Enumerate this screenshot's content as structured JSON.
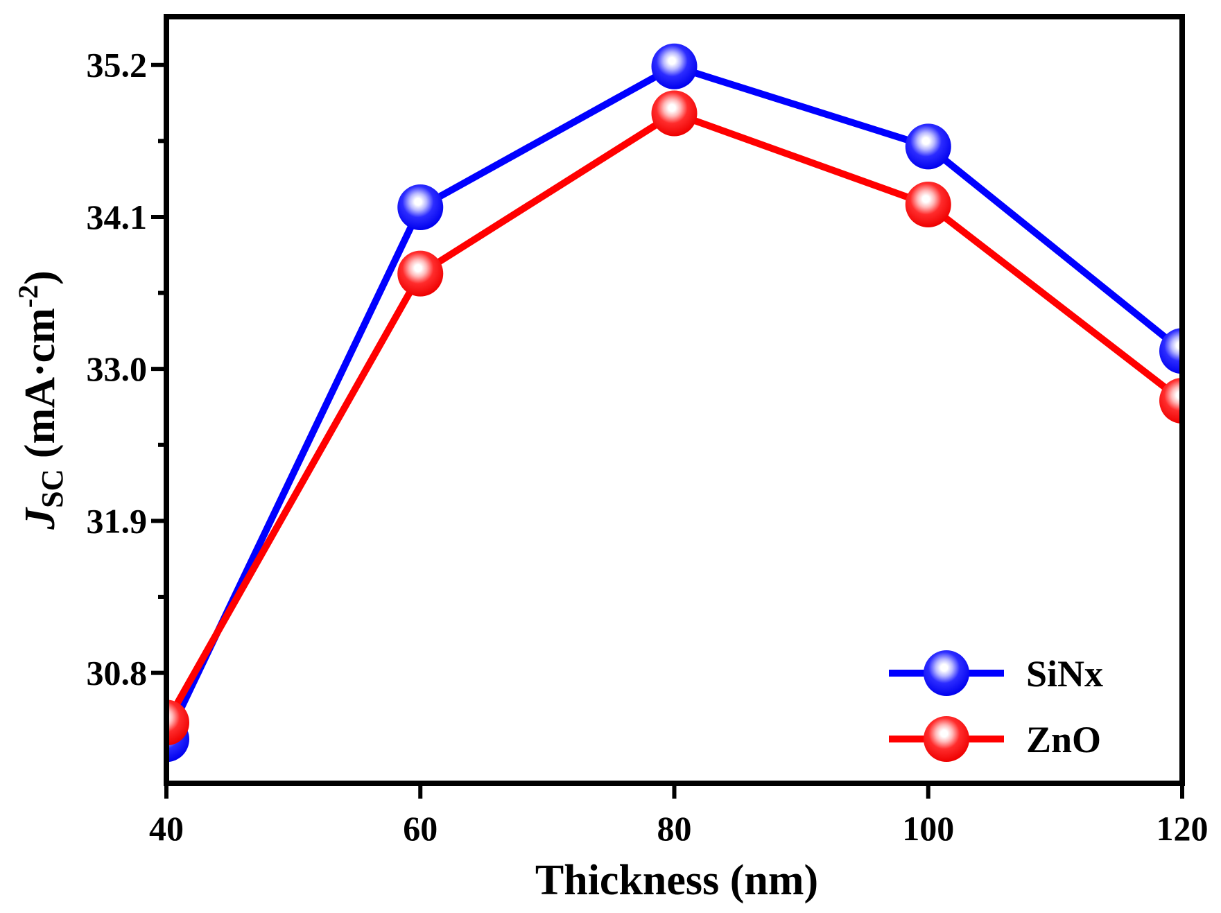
{
  "chart_data": {
    "type": "line",
    "title": "",
    "xlabel": "Thickness (nm)",
    "ylabel": {
      "symbol": "J",
      "subscript": "SC",
      "unit_open": " (mA·cm",
      "unit_exp": "-2",
      "unit_close": ")"
    },
    "x": [
      40,
      60,
      80,
      100,
      120
    ],
    "xlim": [
      40,
      120
    ],
    "ylim": [
      30.0,
      35.55
    ],
    "x_ticks": [
      {
        "value": 40,
        "label": "40"
      },
      {
        "value": 60,
        "label": "60"
      },
      {
        "value": 80,
        "label": "80"
      },
      {
        "value": 100,
        "label": "100"
      },
      {
        "value": 120,
        "label": "120"
      }
    ],
    "y_ticks": [
      {
        "value": 30.8,
        "label": "30.8"
      },
      {
        "value": 31.9,
        "label": "31.9"
      },
      {
        "value": 33.0,
        "label": "33.0"
      },
      {
        "value": 34.1,
        "label": "34.1"
      },
      {
        "value": 35.2,
        "label": "35.2"
      }
    ],
    "y_minor_ticks": [
      31.35,
      32.45,
      33.55,
      34.65
    ],
    "grid": false,
    "legend_position": "bottom-right",
    "series": [
      {
        "name": "SiNx",
        "color": "#0000ff",
        "values": [
          30.32,
          34.17,
          35.19,
          34.61,
          33.13
        ]
      },
      {
        "name": "ZnO",
        "color": "#ff0000",
        "values": [
          30.44,
          33.69,
          34.85,
          34.19,
          32.77
        ]
      }
    ]
  }
}
